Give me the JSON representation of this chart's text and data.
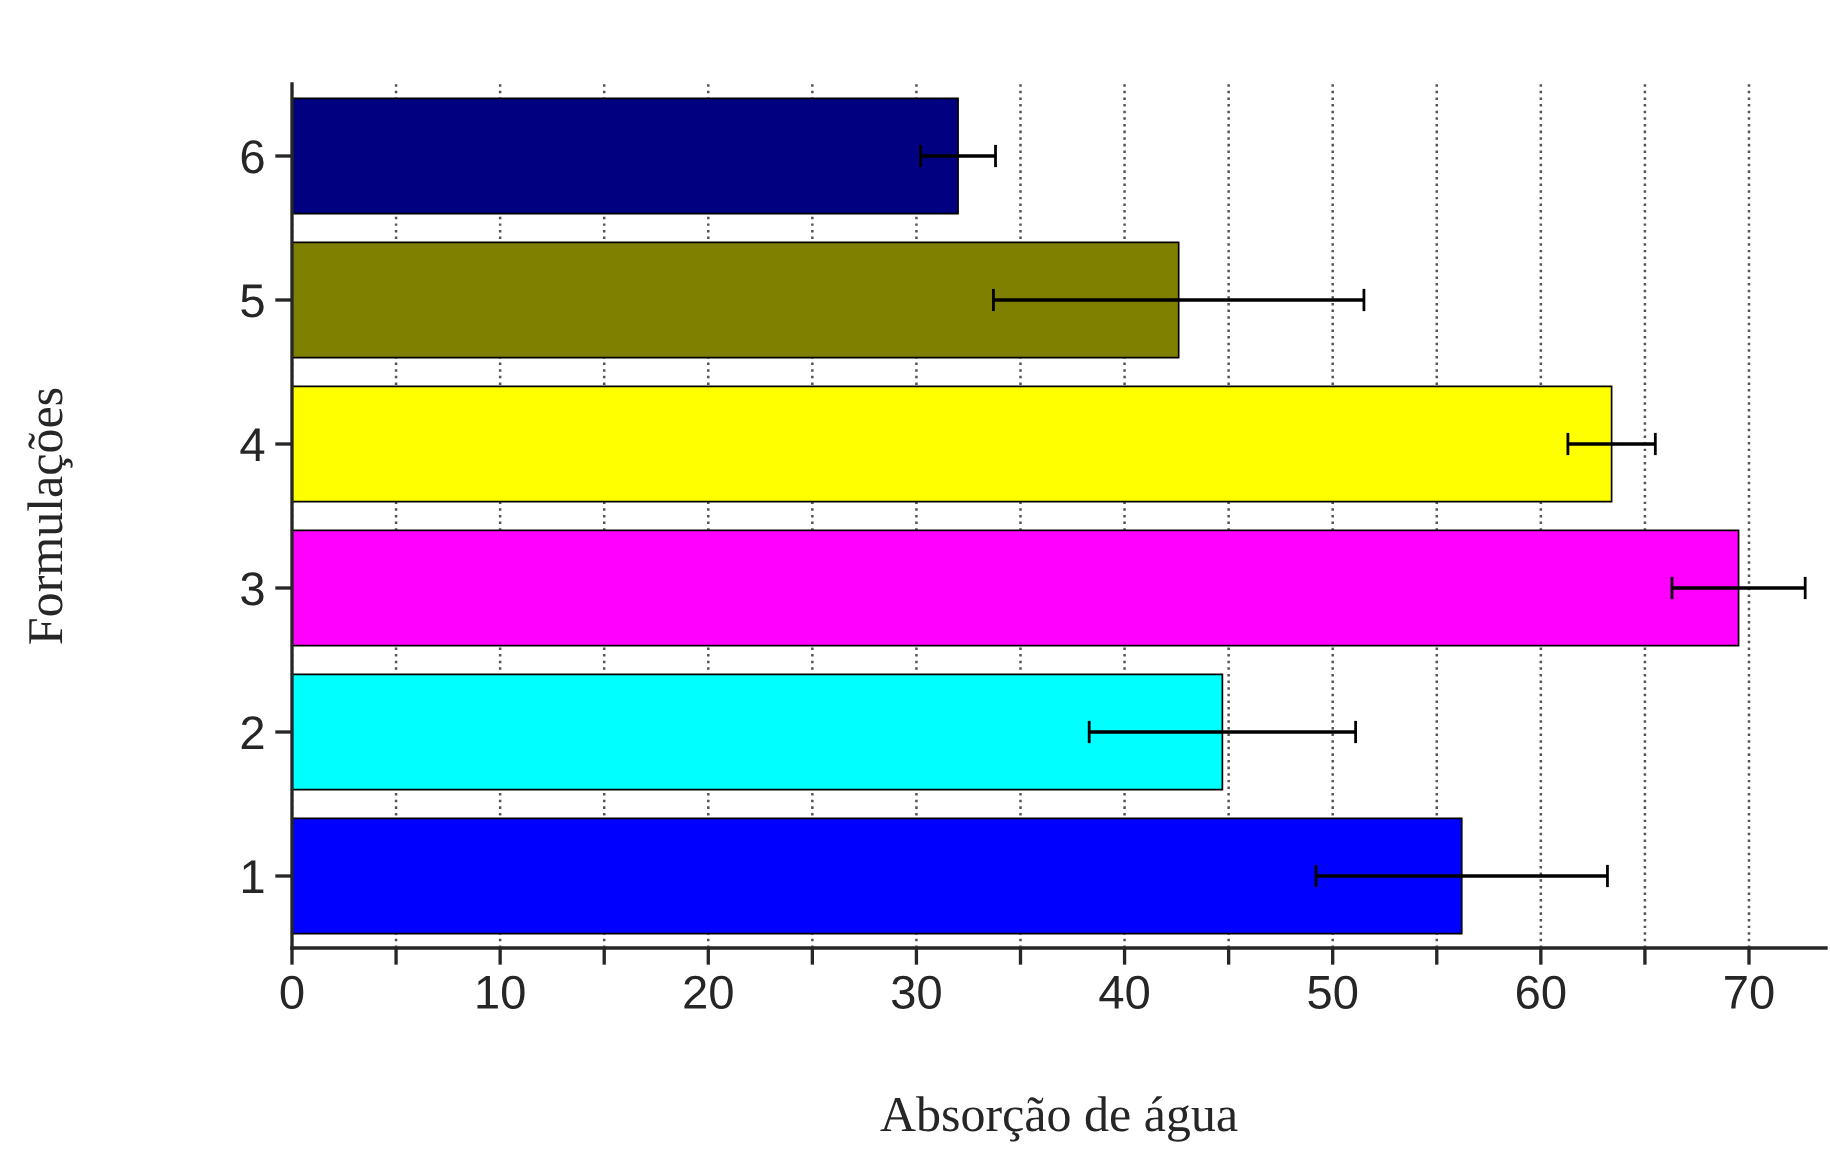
{
  "chart_data": {
    "type": "bar",
    "orientation": "horizontal",
    "xlabel": "Absorção de água",
    "ylabel": "Formulações",
    "categories": [
      "6",
      "5",
      "4",
      "3",
      "2",
      "1"
    ],
    "values": [
      32.0,
      42.6,
      63.4,
      69.5,
      44.7,
      56.2
    ],
    "errors": [
      1.8,
      8.9,
      2.1,
      3.2,
      6.4,
      7.0
    ],
    "colors": [
      "#000080",
      "#808000",
      "#ffff00",
      "#ff00ff",
      "#00ffff",
      "#0000ff"
    ],
    "xlim": [
      0,
      73.7
    ],
    "xticks": [
      0,
      {
        "value": 5,
        "label": null
      },
      10,
      {
        "value": 15,
        "label": null
      },
      20,
      {
        "value": 25,
        "label": null
      },
      30,
      {
        "value": 35,
        "label": null
      },
      40,
      {
        "value": 45,
        "label": null
      },
      50,
      {
        "value": 55,
        "label": null
      },
      60,
      {
        "value": 65,
        "label": null
      },
      70
    ],
    "grid": "x",
    "legend": false
  }
}
